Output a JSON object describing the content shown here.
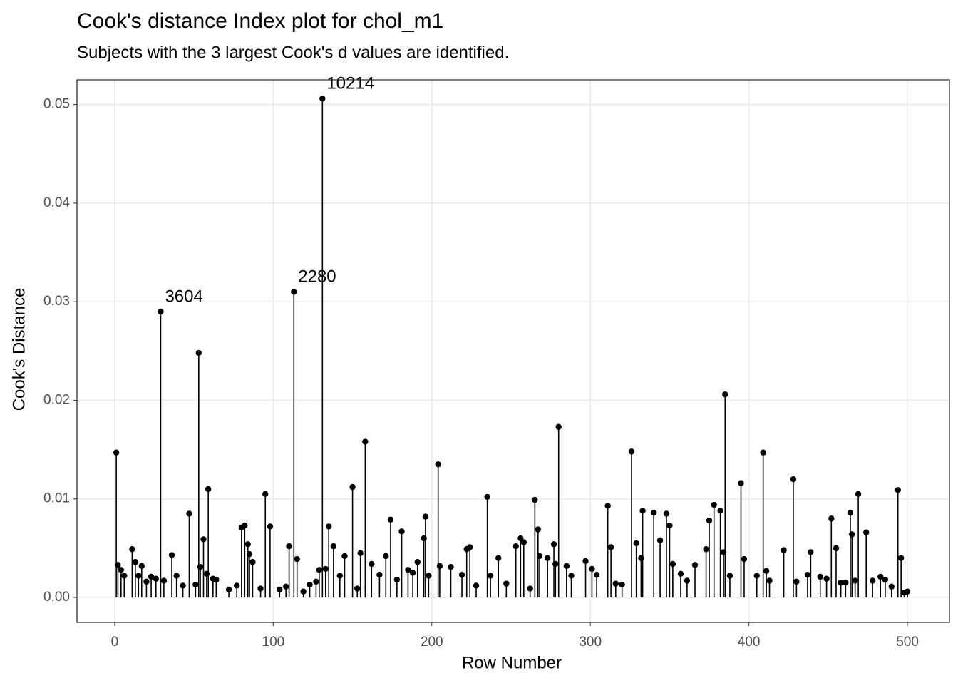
{
  "chart_data": {
    "type": "lollipop",
    "title": "Cook's distance Index plot for chol_m1",
    "subtitle": "Subjects with the 3 largest Cook's d values are identified.",
    "x_label": "Row Number",
    "y_label": "Cook's Distance",
    "color": "#000000",
    "x": [
      1,
      2,
      4,
      6,
      11,
      13,
      15,
      17,
      20,
      23,
      26,
      29,
      31,
      36,
      39,
      43,
      47,
      51,
      53,
      54,
      56,
      58,
      59,
      62,
      64,
      72,
      77,
      80,
      82,
      84,
      85,
      87,
      92,
      95,
      98,
      104,
      108,
      110,
      113,
      115,
      119,
      123,
      127,
      129,
      131,
      133,
      135,
      138,
      142,
      145,
      150,
      153,
      155,
      158,
      162,
      167,
      171,
      174,
      178,
      181,
      185,
      188,
      191,
      195,
      196,
      198,
      204,
      205,
      212,
      219,
      222,
      224,
      228,
      235,
      237,
      242,
      247,
      253,
      256,
      258,
      262,
      265,
      267,
      268,
      273,
      277,
      278,
      280,
      285,
      288,
      297,
      301,
      304,
      311,
      313,
      316,
      320,
      326,
      329,
      332,
      333,
      340,
      344,
      348,
      350,
      352,
      357,
      361,
      366,
      373,
      375,
      378,
      382,
      384,
      385,
      388,
      395,
      397,
      405,
      409,
      411,
      413,
      422,
      428,
      430,
      437,
      439,
      445,
      449,
      452,
      455,
      458,
      461,
      464,
      465,
      467,
      469,
      474,
      478,
      483,
      486,
      490,
      494,
      496,
      498,
      500
    ],
    "y": [
      0.0147,
      0.0033,
      0.0028,
      0.0022,
      0.0049,
      0.0036,
      0.0022,
      0.0032,
      0.0016,
      0.0021,
      0.0019,
      0.029,
      0.0017,
      0.0043,
      0.0022,
      0.0012,
      0.0085,
      0.0013,
      0.0248,
      0.0031,
      0.0059,
      0.0024,
      0.011,
      0.0019,
      0.0018,
      0.0008,
      0.0012,
      0.0071,
      0.0073,
      0.0054,
      0.0044,
      0.0036,
      0.0009,
      0.0105,
      0.0072,
      0.0008,
      0.0011,
      0.0052,
      0.031,
      0.0039,
      0.0006,
      0.0013,
      0.0016,
      0.0028,
      0.0506,
      0.0029,
      0.0072,
      0.0052,
      0.0022,
      0.0042,
      0.0112,
      0.0009,
      0.0045,
      0.0158,
      0.0034,
      0.0023,
      0.0042,
      0.0079,
      0.0018,
      0.0067,
      0.0028,
      0.0025,
      0.0036,
      0.006,
      0.0082,
      0.0022,
      0.0135,
      0.0032,
      0.0031,
      0.0023,
      0.0049,
      0.0051,
      0.0012,
      0.0102,
      0.0022,
      0.004,
      0.0014,
      0.0052,
      0.006,
      0.0056,
      0.0009,
      0.0099,
      0.0069,
      0.0042,
      0.004,
      0.0054,
      0.0034,
      0.0173,
      0.0032,
      0.0022,
      0.0037,
      0.0029,
      0.0023,
      0.0093,
      0.0051,
      0.0014,
      0.0013,
      0.0148,
      0.0055,
      0.004,
      0.0088,
      0.0086,
      0.0058,
      0.0085,
      0.0073,
      0.0034,
      0.0024,
      0.0017,
      0.0033,
      0.0049,
      0.0078,
      0.0094,
      0.0088,
      0.0046,
      0.0206,
      0.0022,
      0.0116,
      0.0039,
      0.0022,
      0.0147,
      0.0027,
      0.0017,
      0.0048,
      0.012,
      0.0016,
      0.0023,
      0.0046,
      0.0021,
      0.0019,
      0.008,
      0.005,
      0.0015,
      0.0015,
      0.0086,
      0.0064,
      0.0017,
      0.0105,
      0.0066,
      0.0017,
      0.0021,
      0.0018,
      0.0011,
      0.0109,
      0.004,
      0.0005,
      0.0006
    ],
    "point_labels": {
      "11": "3604",
      "38": "2280",
      "44": "10214"
    },
    "xlim": [
      -23.8,
      526.5
    ],
    "ylim": [
      -0.00253,
      0.0525
    ],
    "xticks": [
      0,
      100,
      200,
      300,
      400,
      500
    ],
    "yticks": [
      {
        "value": 0,
        "label": "0.00"
      },
      {
        "value": 0.01,
        "label": "0.01"
      },
      {
        "value": 0.02,
        "label": "0.02"
      },
      {
        "value": 0.03,
        "label": "0.03"
      },
      {
        "value": 0.04,
        "label": "0.04"
      },
      {
        "value": 0.05,
        "label": "0.05"
      }
    ],
    "grid": true
  }
}
